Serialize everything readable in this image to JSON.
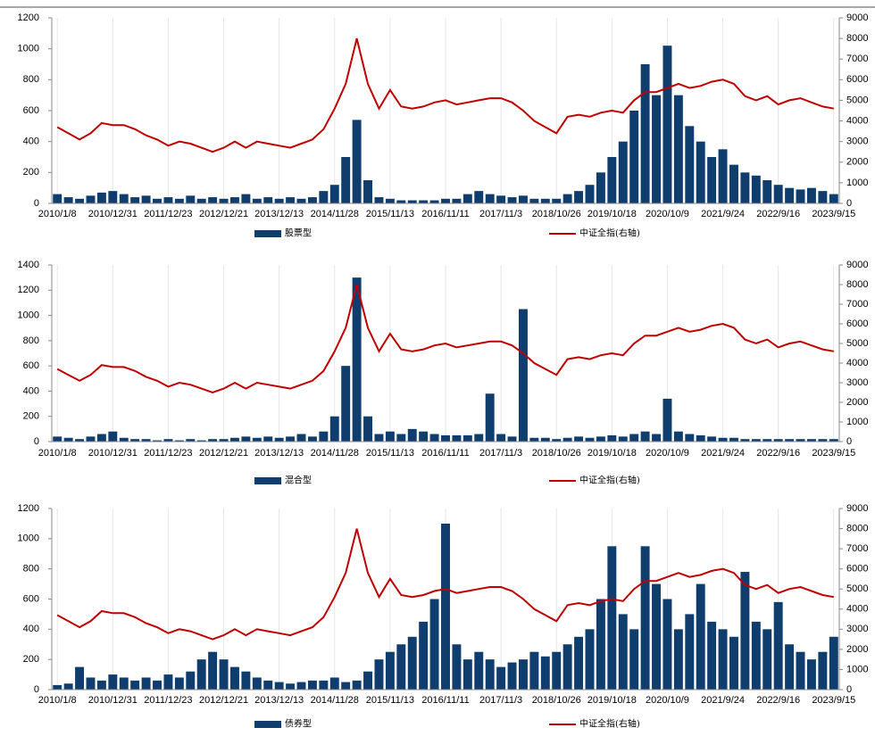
{
  "chart_data": [
    {
      "type": "bar",
      "categories": [
        "2010/1/8",
        null,
        null,
        null,
        null,
        "2010/12/31",
        null,
        null,
        null,
        null,
        "2011/12/23",
        null,
        null,
        null,
        null,
        "2012/12/21",
        null,
        null,
        null,
        null,
        "2013/12/13",
        null,
        null,
        null,
        null,
        "2014/11/28",
        null,
        null,
        null,
        null,
        "2015/11/13",
        null,
        null,
        null,
        null,
        "2016/11/11",
        null,
        null,
        null,
        null,
        "2017/11/3",
        null,
        null,
        null,
        null,
        "2018/10/26",
        null,
        null,
        null,
        null,
        "2019/10/18",
        null,
        null,
        null,
        null,
        "2020/10/9",
        null,
        null,
        null,
        null,
        "2021/9/24",
        null,
        null,
        null,
        null,
        "2022/9/16",
        null,
        null,
        null,
        null,
        "2023/9/15"
      ],
      "series": [
        {
          "name": "股票型",
          "type": "bar",
          "color": "#0e3d6e",
          "values": [
            60,
            40,
            30,
            50,
            70,
            80,
            60,
            40,
            50,
            30,
            40,
            30,
            50,
            30,
            40,
            30,
            40,
            60,
            30,
            40,
            30,
            40,
            30,
            40,
            80,
            120,
            300,
            540,
            150,
            40,
            30,
            20,
            20,
            20,
            20,
            30,
            30,
            60,
            80,
            60,
            50,
            40,
            50,
            30,
            30,
            30,
            60,
            80,
            120,
            200,
            300,
            400,
            600,
            900,
            700,
            1020,
            700,
            500,
            400,
            300,
            350,
            250,
            200,
            180,
            150,
            120,
            100,
            90,
            100,
            80,
            60
          ]
        },
        {
          "name": "中证全指(右轴)",
          "type": "line",
          "axis": "y2",
          "color": "#c00000",
          "values": [
            3700,
            3400,
            3100,
            3400,
            3900,
            3800,
            3800,
            3600,
            3300,
            3100,
            2800,
            3000,
            2900,
            2700,
            2500,
            2700,
            3000,
            2700,
            3000,
            2900,
            2800,
            2700,
            2900,
            3100,
            3600,
            4600,
            5800,
            8000,
            5800,
            4600,
            5500,
            4700,
            4600,
            4700,
            4900,
            5000,
            4800,
            4900,
            5000,
            5100,
            5100,
            4900,
            4500,
            4000,
            3700,
            3400,
            4200,
            4300,
            4200,
            4400,
            4500,
            4400,
            5000,
            5400,
            5400,
            5600,
            5800,
            5600,
            5700,
            5900,
            6000,
            5800,
            5200,
            5000,
            5200,
            4800,
            5000,
            5100,
            4900,
            4700,
            4600
          ]
        }
      ],
      "ylim": [
        0,
        1200
      ],
      "yticks": [
        0,
        200,
        400,
        600,
        800,
        1000,
        1200
      ],
      "y2lim": [
        0,
        9000
      ],
      "y2ticks": [
        0,
        1000,
        2000,
        3000,
        4000,
        5000,
        6000,
        7000,
        8000,
        9000
      ]
    },
    {
      "type": "bar",
      "categories": [
        "2010/1/8",
        null,
        null,
        null,
        null,
        "2010/12/31",
        null,
        null,
        null,
        null,
        "2011/12/23",
        null,
        null,
        null,
        null,
        "2012/12/21",
        null,
        null,
        null,
        null,
        "2013/12/13",
        null,
        null,
        null,
        null,
        "2014/11/28",
        null,
        null,
        null,
        null,
        "2015/11/13",
        null,
        null,
        null,
        null,
        "2016/11/11",
        null,
        null,
        null,
        null,
        "2017/11/3",
        null,
        null,
        null,
        null,
        "2018/10/26",
        null,
        null,
        null,
        null,
        "2019/10/18",
        null,
        null,
        null,
        null,
        "2020/10/9",
        null,
        null,
        null,
        null,
        "2021/9/24",
        null,
        null,
        null,
        null,
        "2022/9/16",
        null,
        null,
        null,
        null,
        "2023/9/15"
      ],
      "series": [
        {
          "name": "混合型",
          "type": "bar",
          "color": "#0e3d6e",
          "values": [
            40,
            30,
            20,
            40,
            60,
            80,
            30,
            20,
            20,
            10,
            20,
            10,
            20,
            10,
            20,
            20,
            30,
            40,
            30,
            40,
            30,
            40,
            60,
            40,
            80,
            200,
            600,
            1300,
            200,
            60,
            80,
            60,
            100,
            80,
            60,
            50,
            50,
            50,
            60,
            380,
            60,
            40,
            1050,
            30,
            30,
            20,
            30,
            40,
            30,
            40,
            50,
            40,
            60,
            80,
            60,
            340,
            80,
            60,
            50,
            40,
            30,
            30,
            20,
            20,
            20,
            20,
            20,
            20,
            20,
            20,
            20
          ]
        },
        {
          "name": "中证全指(右轴)",
          "type": "line",
          "axis": "y2",
          "color": "#c00000",
          "values": [
            3700,
            3400,
            3100,
            3400,
            3900,
            3800,
            3800,
            3600,
            3300,
            3100,
            2800,
            3000,
            2900,
            2700,
            2500,
            2700,
            3000,
            2700,
            3000,
            2900,
            2800,
            2700,
            2900,
            3100,
            3600,
            4600,
            5800,
            8000,
            5800,
            4600,
            5500,
            4700,
            4600,
            4700,
            4900,
            5000,
            4800,
            4900,
            5000,
            5100,
            5100,
            4900,
            4500,
            4000,
            3700,
            3400,
            4200,
            4300,
            4200,
            4400,
            4500,
            4400,
            5000,
            5400,
            5400,
            5600,
            5800,
            5600,
            5700,
            5900,
            6000,
            5800,
            5200,
            5000,
            5200,
            4800,
            5000,
            5100,
            4900,
            4700,
            4600
          ]
        }
      ],
      "ylim": [
        0,
        1400
      ],
      "yticks": [
        0,
        200,
        400,
        600,
        800,
        1000,
        1200,
        1400
      ],
      "y2lim": [
        0,
        9000
      ],
      "y2ticks": [
        0,
        1000,
        2000,
        3000,
        4000,
        5000,
        6000,
        7000,
        8000,
        9000
      ]
    },
    {
      "type": "bar",
      "categories": [
        "2010/1/8",
        null,
        null,
        null,
        null,
        "2010/12/31",
        null,
        null,
        null,
        null,
        "2011/12/23",
        null,
        null,
        null,
        null,
        "2012/12/21",
        null,
        null,
        null,
        null,
        "2013/12/13",
        null,
        null,
        null,
        null,
        "2014/11/28",
        null,
        null,
        null,
        null,
        "2015/11/13",
        null,
        null,
        null,
        null,
        "2016/11/11",
        null,
        null,
        null,
        null,
        "2017/11/3",
        null,
        null,
        null,
        null,
        "2018/10/26",
        null,
        null,
        null,
        null,
        "2019/10/18",
        null,
        null,
        null,
        null,
        "2020/10/9",
        null,
        null,
        null,
        null,
        "2021/9/24",
        null,
        null,
        null,
        null,
        "2022/9/16",
        null,
        null,
        null,
        null,
        "2023/9/15"
      ],
      "series": [
        {
          "name": "债券型",
          "type": "bar",
          "color": "#0e3d6e",
          "values": [
            30,
            40,
            150,
            80,
            60,
            100,
            80,
            60,
            80,
            60,
            100,
            80,
            120,
            200,
            250,
            200,
            150,
            120,
            80,
            60,
            50,
            40,
            50,
            60,
            60,
            80,
            50,
            60,
            120,
            200,
            250,
            300,
            350,
            450,
            600,
            1100,
            300,
            200,
            250,
            200,
            150,
            180,
            200,
            250,
            220,
            250,
            300,
            350,
            400,
            600,
            950,
            500,
            400,
            950,
            700,
            600,
            400,
            500,
            700,
            450,
            400,
            350,
            780,
            450,
            400,
            580,
            300,
            250,
            200,
            250,
            350
          ]
        },
        {
          "name": "中证全指(右轴)",
          "type": "line",
          "axis": "y2",
          "color": "#c00000",
          "values": [
            3700,
            3400,
            3100,
            3400,
            3900,
            3800,
            3800,
            3600,
            3300,
            3100,
            2800,
            3000,
            2900,
            2700,
            2500,
            2700,
            3000,
            2700,
            3000,
            2900,
            2800,
            2700,
            2900,
            3100,
            3600,
            4600,
            5800,
            8000,
            5800,
            4600,
            5500,
            4700,
            4600,
            4700,
            4900,
            5000,
            4800,
            4900,
            5000,
            5100,
            5100,
            4900,
            4500,
            4000,
            3700,
            3400,
            4200,
            4300,
            4200,
            4400,
            4500,
            4400,
            5000,
            5400,
            5400,
            5600,
            5800,
            5600,
            5700,
            5900,
            6000,
            5800,
            5200,
            5000,
            5200,
            4800,
            5000,
            5100,
            4900,
            4700,
            4600
          ]
        }
      ],
      "ylim": [
        0,
        1200
      ],
      "yticks": [
        0,
        200,
        400,
        600,
        800,
        1000,
        1200
      ],
      "y2lim": [
        0,
        9000
      ],
      "y2ticks": [
        0,
        1000,
        2000,
        3000,
        4000,
        5000,
        6000,
        7000,
        8000,
        9000
      ]
    }
  ]
}
